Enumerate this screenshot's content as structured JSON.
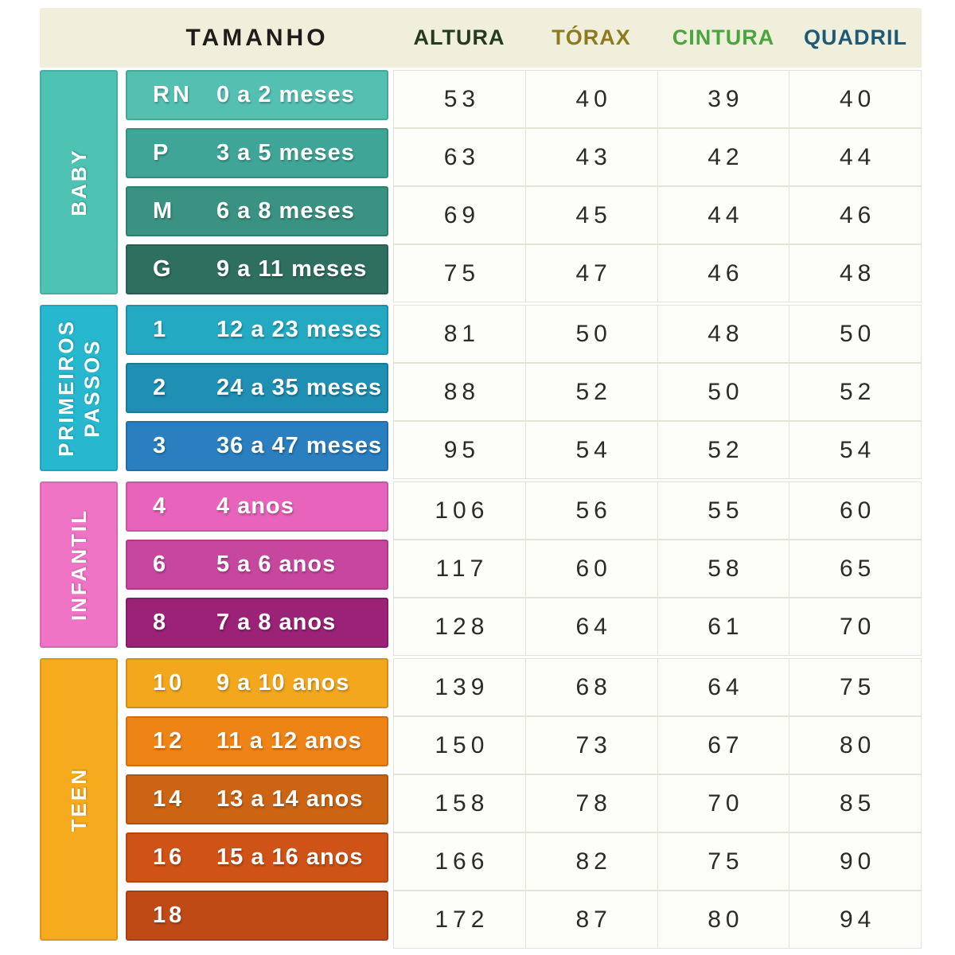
{
  "colors": {
    "header_band": "#f0efdb",
    "cell_bg": "#fdfdf9",
    "cell_border": "#e4e3d7",
    "number_color": "#2b2b28",
    "page_bg": "#ffffff"
  },
  "chart_data": {
    "type": "table",
    "columns": [
      {
        "key": "tamanho",
        "label": "TAMANHO",
        "color": "#1e1d1a"
      },
      {
        "key": "altura",
        "label": "ALTURA",
        "color": "#243a22"
      },
      {
        "key": "torax",
        "label": "TÓRAX",
        "color": "#8d7b1e"
      },
      {
        "key": "cintura",
        "label": "CINTURA",
        "color": "#49a63c"
      },
      {
        "key": "quadril",
        "label": "QUADRIL",
        "color": "#1e5a78"
      }
    ],
    "sections": [
      {
        "name": "BABY",
        "sidebar_color": "#4ec3b4",
        "rows": [
          {
            "code": "RN",
            "age": "0 a 2 meses",
            "bar_color": "#54c0b2",
            "altura": "53",
            "torax": "40",
            "cintura": "39",
            "quadril": "40"
          },
          {
            "code": "P",
            "age": "3 a 5 meses",
            "bar_color": "#3fa697",
            "altura": "63",
            "torax": "43",
            "cintura": "42",
            "quadril": "44"
          },
          {
            "code": "M",
            "age": "6 a 8 meses",
            "bar_color": "#3a9283",
            "altura": "69",
            "torax": "45",
            "cintura": "44",
            "quadril": "46"
          },
          {
            "code": "G",
            "age": "9 a 11 meses",
            "bar_color": "#2f6f60",
            "altura": "75",
            "torax": "47",
            "cintura": "46",
            "quadril": "48"
          }
        ]
      },
      {
        "name": "PRIMEIROS\nPASSOS",
        "sidebar_color": "#27b8cf",
        "rows": [
          {
            "code": "1",
            "age": "12 a 23 meses",
            "bar_color": "#23a9c2",
            "altura": "81",
            "torax": "50",
            "cintura": "48",
            "quadril": "50"
          },
          {
            "code": "2",
            "age": "24 a 35 meses",
            "bar_color": "#1f8fb4",
            "altura": "88",
            "torax": "52",
            "cintura": "50",
            "quadril": "52"
          },
          {
            "code": "3",
            "age": "36 a 47 meses",
            "bar_color": "#2a7fc0",
            "altura": "95",
            "torax": "54",
            "cintura": "52",
            "quadril": "54"
          }
        ]
      },
      {
        "name": "INFANTIL",
        "sidebar_color": "#ef74c5",
        "rows": [
          {
            "code": "4",
            "age": "4 anos",
            "bar_color": "#e763bc",
            "altura": "106",
            "torax": "56",
            "cintura": "55",
            "quadril": "60"
          },
          {
            "code": "6",
            "age": "5 a 6 anos",
            "bar_color": "#c8479e",
            "altura": "117",
            "torax": "60",
            "cintura": "58",
            "quadril": "65"
          },
          {
            "code": "8",
            "age": "7 a 8 anos",
            "bar_color": "#9b2277",
            "altura": "128",
            "torax": "64",
            "cintura": "61",
            "quadril": "70"
          }
        ]
      },
      {
        "name": "TEEN",
        "sidebar_color": "#f6aa1e",
        "rows": [
          {
            "code": "10",
            "age": "9 a 10 anos",
            "bar_color": "#f3a71d",
            "altura": "139",
            "torax": "68",
            "cintura": "64",
            "quadril": "75"
          },
          {
            "code": "12",
            "age": "11 a 12 anos",
            "bar_color": "#ee8316",
            "altura": "150",
            "torax": "73",
            "cintura": "67",
            "quadril": "80"
          },
          {
            "code": "14",
            "age": "13 a 14 anos",
            "bar_color": "#cd6413",
            "altura": "158",
            "torax": "78",
            "cintura": "70",
            "quadril": "85"
          },
          {
            "code": "16",
            "age": "15 a 16 anos",
            "bar_color": "#cf5317",
            "altura": "166",
            "torax": "82",
            "cintura": "75",
            "quadril": "90"
          },
          {
            "code": "18",
            "age": "",
            "bar_color": "#c04a16",
            "altura": "172",
            "torax": "87",
            "cintura": "80",
            "quadril": "94"
          }
        ]
      }
    ]
  }
}
